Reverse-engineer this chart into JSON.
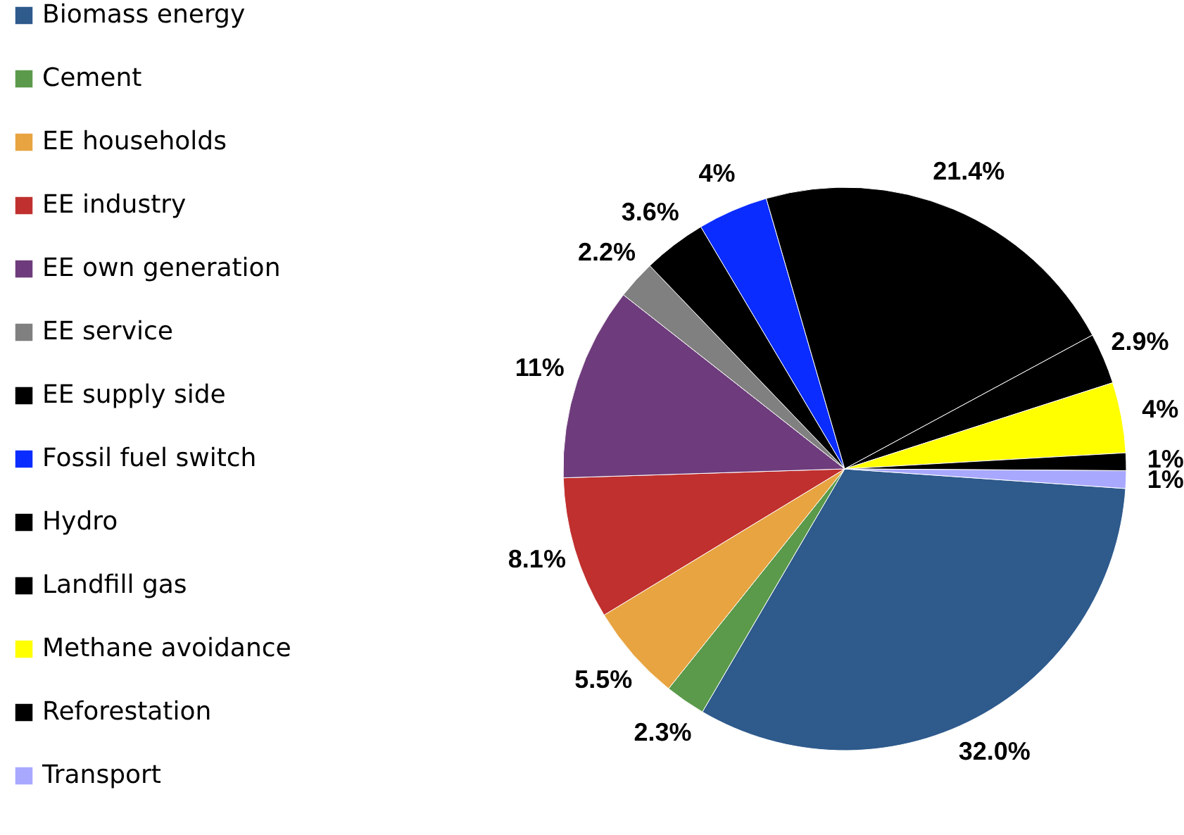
{
  "chart_data": {
    "type": "pie",
    "categories": [
      "Biomass energy",
      "Cement",
      "EE households",
      "EE industry",
      "EE own generation",
      "EE service",
      "EE supply side",
      "Fossil fuel switch",
      "Hydro",
      "Landfill gas",
      "Methane avoidance",
      "Reforestation",
      "Transport"
    ],
    "values": [
      32.0,
      2.3,
      5.5,
      8.1,
      11,
      2.2,
      3.6,
      4,
      21.4,
      2.9,
      4,
      1,
      1
    ],
    "value_labels": [
      "32.0%",
      "2.3%",
      "5.5%",
      "8.1%",
      "11%",
      "2.2%",
      "3.6%",
      "4%",
      "21.4%",
      "2.9%",
      "4%",
      "1%",
      "1%"
    ],
    "colors": [
      "#2e5a8c",
      "#5a9a4a",
      "#e8a440",
      "#c0302e",
      "#6e3c7c",
      "#808080",
      "#000000",
      "#0a2cff",
      "#000000",
      "#000000",
      "#ffff00",
      "#000000",
      "#a8a8ff"
    ],
    "legend": "left"
  }
}
